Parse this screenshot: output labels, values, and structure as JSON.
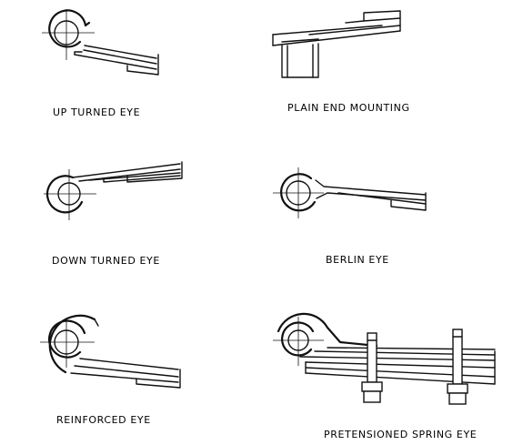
{
  "captions": {
    "up_turned_eye": "UP TURNED EYE",
    "plain_end_mounting": "PLAIN END MOUNTING",
    "down_turned_eye": "DOWN TURNED EYE",
    "berlin_eye": "BERLIN EYE",
    "reinforced_eye": "REINFORCED EYE",
    "pretensioned_spring_eye": "PRETENSIONED SPRING EYE"
  }
}
